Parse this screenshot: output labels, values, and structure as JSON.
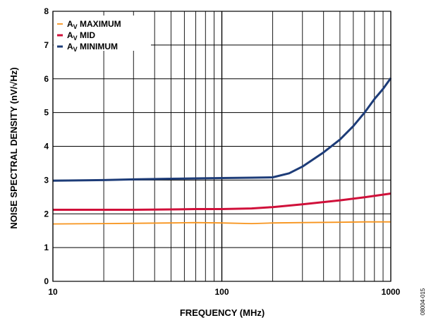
{
  "figure_id": "08004-015",
  "chart_data": {
    "type": "line",
    "title": "",
    "xlabel": "FREQUENCY (MHz)",
    "ylabel": "NOISE SPECTRAL DENSITY (nV/√Hz)",
    "x_scale": "log",
    "xlim": [
      10,
      1000
    ],
    "ylim": [
      0,
      8
    ],
    "x_ticks": [
      10,
      100,
      1000
    ],
    "y_ticks": [
      0,
      1,
      2,
      3,
      4,
      5,
      6,
      7,
      8
    ],
    "grid": true,
    "legend_position": "top-left",
    "series": [
      {
        "name": "AV MAXIMUM",
        "label_main": "A",
        "label_sub": "V",
        "label_rest": " MAXIMUM",
        "color": "#f7941d",
        "x": [
          10,
          20,
          30,
          50,
          70,
          100,
          150,
          200,
          300,
          500,
          700,
          1000
        ],
        "y": [
          1.7,
          1.71,
          1.72,
          1.73,
          1.74,
          1.73,
          1.71,
          1.73,
          1.74,
          1.75,
          1.76,
          1.76
        ]
      },
      {
        "name": "AV MID",
        "label_main": "A",
        "label_sub": "V",
        "label_rest": " MID",
        "color": "#d0103a",
        "x": [
          10,
          20,
          30,
          50,
          70,
          100,
          150,
          200,
          300,
          500,
          700,
          1000
        ],
        "y": [
          2.12,
          2.12,
          2.12,
          2.13,
          2.14,
          2.14,
          2.16,
          2.2,
          2.28,
          2.4,
          2.49,
          2.6
        ]
      },
      {
        "name": "AV MINIMUM",
        "label_main": "A",
        "label_sub": "V",
        "label_rest": " MINIMUM",
        "color": "#1d3c78",
        "x": [
          10,
          20,
          30,
          50,
          70,
          100,
          150,
          200,
          250,
          300,
          400,
          500,
          600,
          700,
          800,
          900,
          1000
        ],
        "y": [
          2.98,
          3.0,
          3.02,
          3.04,
          3.05,
          3.06,
          3.07,
          3.08,
          3.2,
          3.4,
          3.82,
          4.2,
          4.6,
          5.0,
          5.4,
          5.7,
          6.02
        ]
      }
    ]
  }
}
